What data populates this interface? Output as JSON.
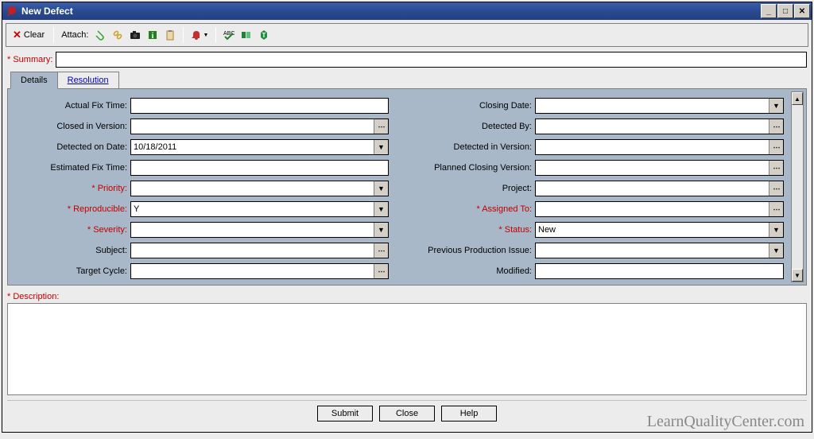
{
  "window": {
    "title": "New Defect",
    "icon_color": "#c02020"
  },
  "toolbar": {
    "clear_label": "Clear",
    "attach_label": "Attach:",
    "icons": {
      "clear_x_color": "#d00000",
      "clip_color": "#30a030",
      "link_color": "#d0a020",
      "camera_color": "#202020",
      "info_color": "#208020",
      "clipboard_color": "#b08030",
      "find_color": "#c03030",
      "spell_color": "#208020",
      "book_color": "#208040",
      "cube_color": "#209040"
    }
  },
  "summary": {
    "label": "* Summary:",
    "value": ""
  },
  "tabs": {
    "details": "Details",
    "resolution": "Resolution"
  },
  "fields_left": [
    {
      "label": "Actual Fix Time:",
      "value": "",
      "type": "text",
      "required": false
    },
    {
      "label": "Closed in Version:",
      "value": "",
      "type": "lookup",
      "required": false
    },
    {
      "label": "Detected on Date:",
      "value": "10/18/2011",
      "type": "dropdown",
      "required": false
    },
    {
      "label": "Estimated Fix Time:",
      "value": "",
      "type": "text",
      "required": false
    },
    {
      "label": "* Priority:",
      "value": "",
      "type": "dropdown",
      "required": true
    },
    {
      "label": "* Reproducible:",
      "value": "Y",
      "type": "dropdown",
      "required": true
    },
    {
      "label": "* Severity:",
      "value": "",
      "type": "dropdown",
      "required": true
    },
    {
      "label": "Subject:",
      "value": "",
      "type": "lookup",
      "required": false
    },
    {
      "label": "Target Cycle:",
      "value": "",
      "type": "lookup",
      "required": false
    }
  ],
  "fields_right": [
    {
      "label": "Closing Date:",
      "value": "",
      "type": "dropdown",
      "required": false
    },
    {
      "label": "Detected By:",
      "value": "",
      "type": "lookup",
      "required": false
    },
    {
      "label": "Detected in Version:",
      "value": "",
      "type": "lookup",
      "required": false
    },
    {
      "label": "Planned Closing Version:",
      "value": "",
      "type": "lookup",
      "required": false
    },
    {
      "label": "Project:",
      "value": "",
      "type": "lookup",
      "required": false
    },
    {
      "label": "* Assigned To:",
      "value": "",
      "type": "lookup",
      "required": true
    },
    {
      "label": "* Status:",
      "value": "New",
      "type": "dropdown",
      "required": true
    },
    {
      "label": "Previous Production Issue:",
      "value": "",
      "type": "dropdown",
      "required": false
    },
    {
      "label": "Modified:",
      "value": "",
      "type": "text",
      "required": false
    }
  ],
  "description": {
    "label": "* Description:"
  },
  "buttons": {
    "submit": "Submit",
    "close": "Close",
    "help": "Help"
  },
  "watermark": "LearnQualityCenter.com",
  "colors": {
    "titlebar_bg": "#2a4a90",
    "details_bg": "#a8b8c8",
    "required_color": "#c00000",
    "window_bg": "#ececec",
    "border": "#808080"
  }
}
